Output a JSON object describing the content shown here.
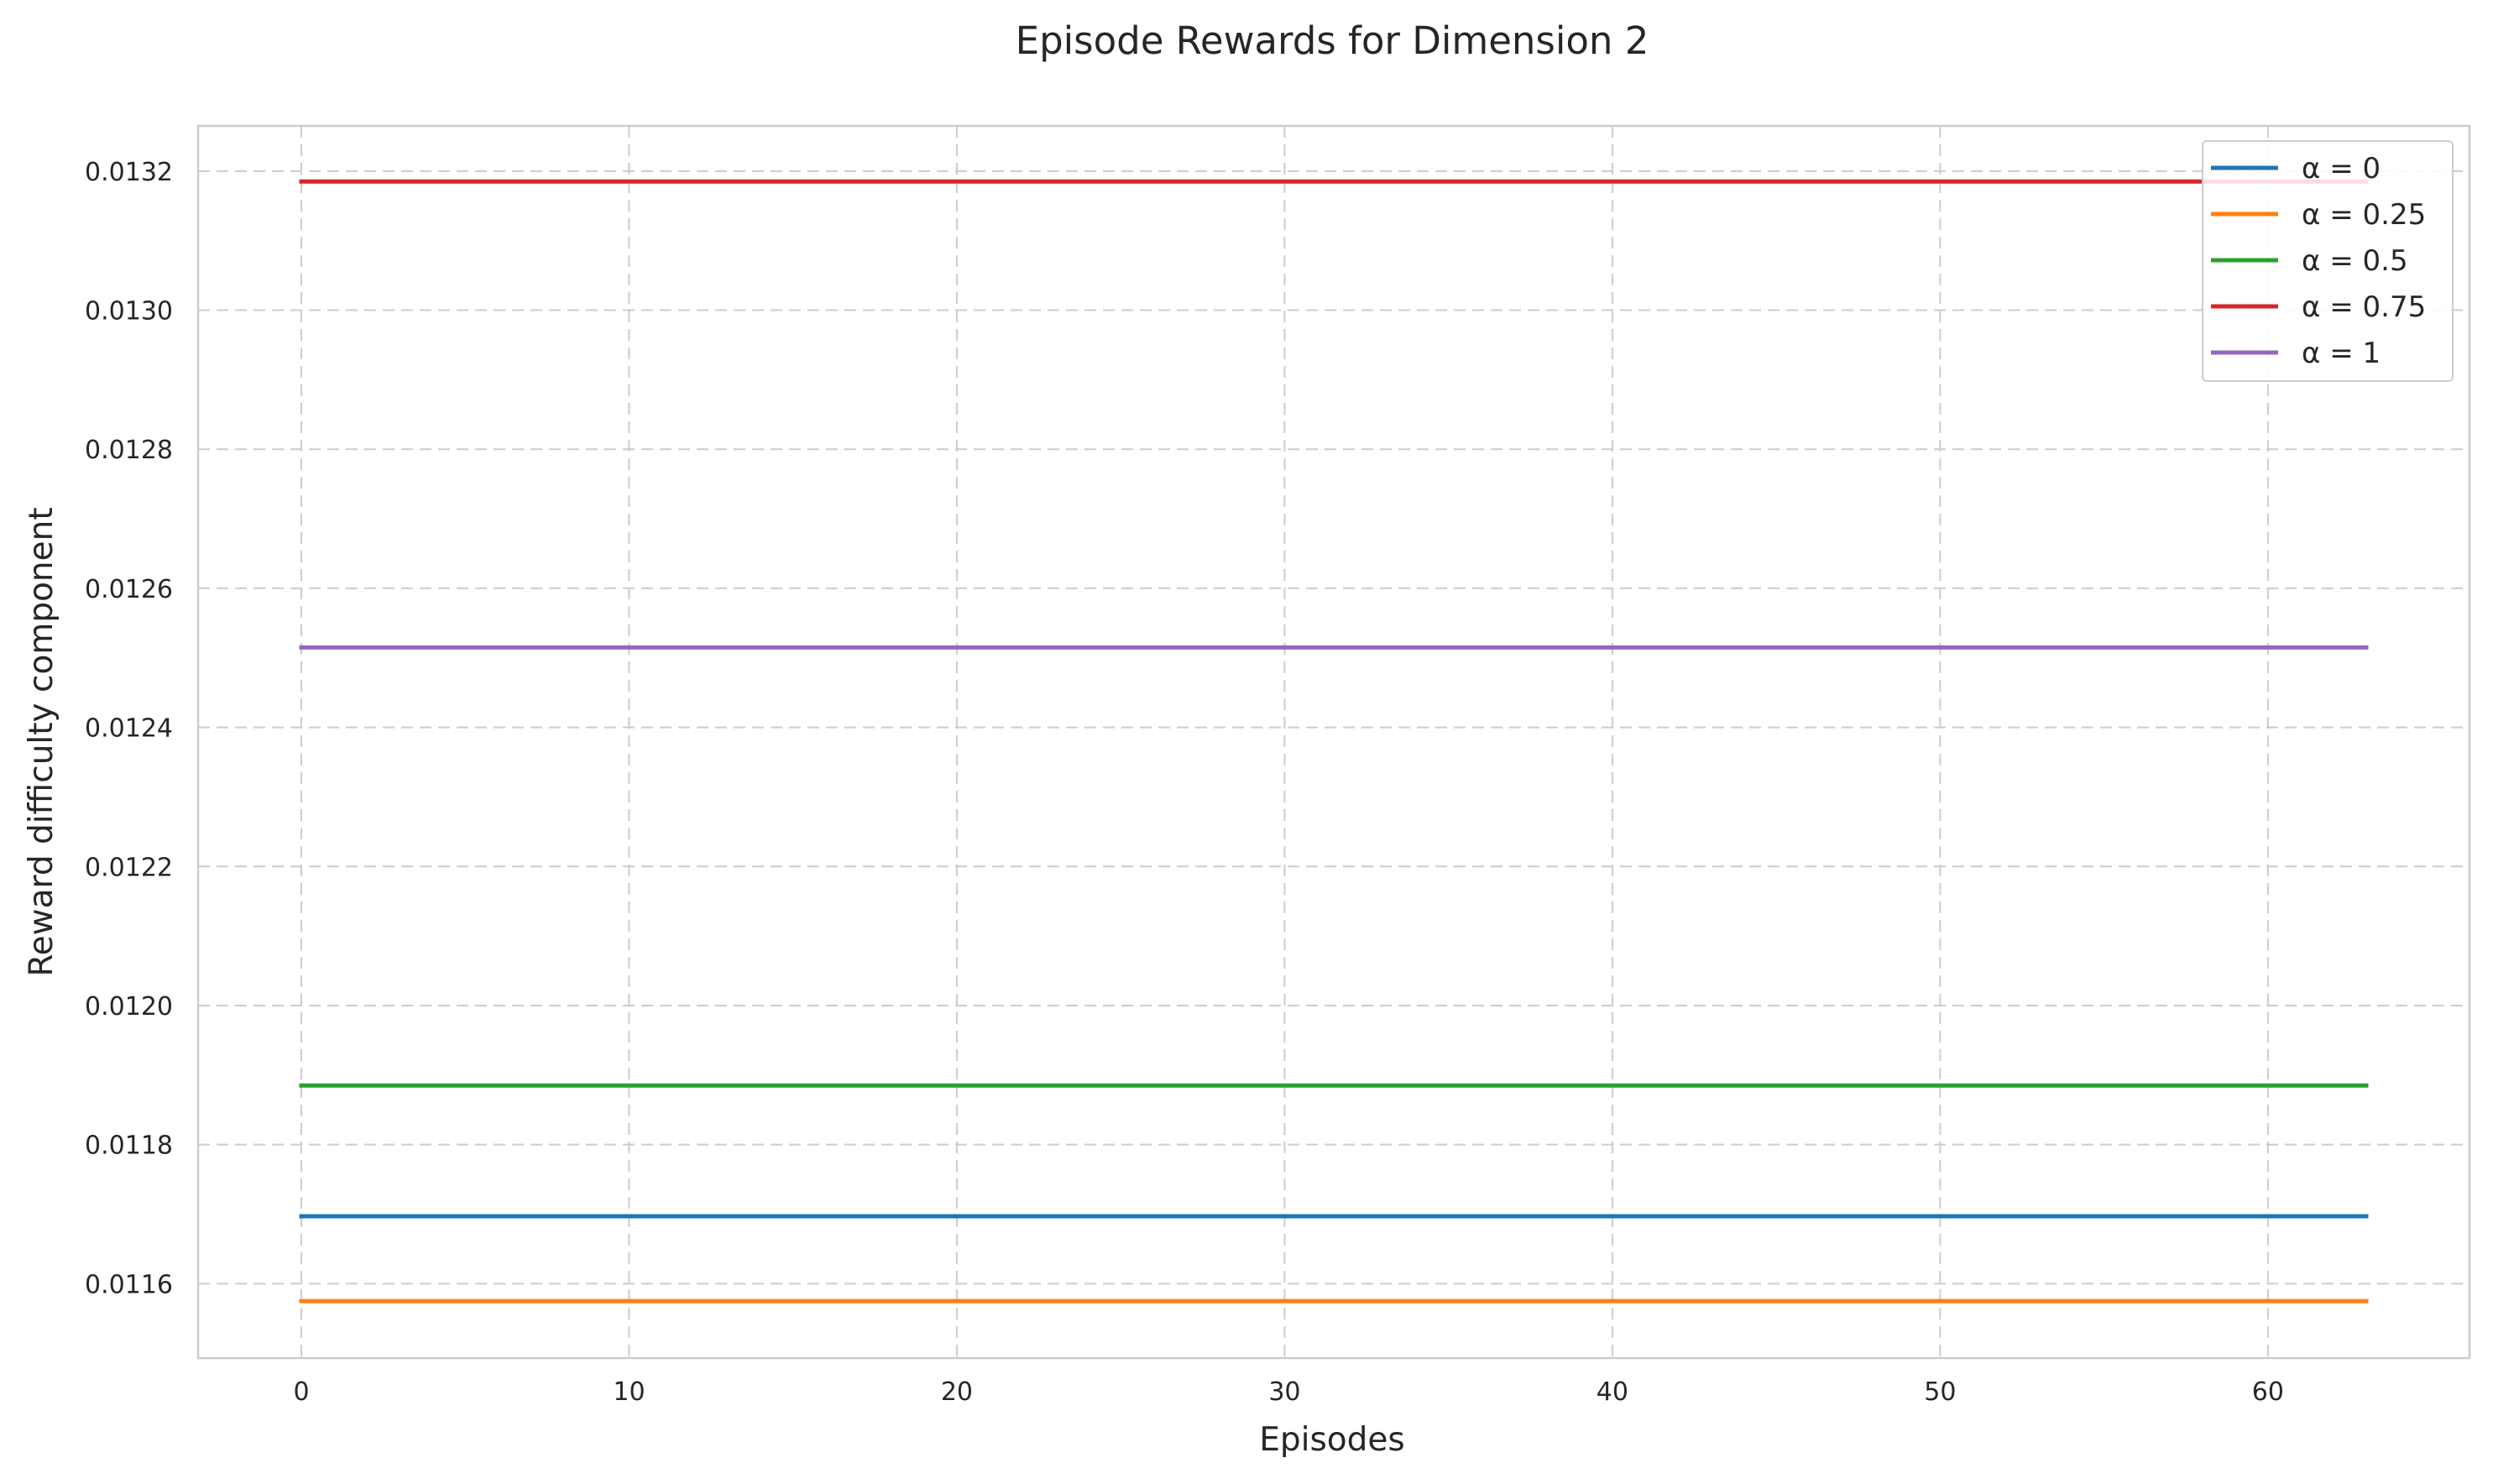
{
  "chart_data": {
    "type": "line",
    "title": "Episode Rewards for Dimension 2",
    "xlabel": "Episodes",
    "ylabel": "Reward difficulty component",
    "xlim": [
      -3.15,
      66.15
    ],
    "ylim": [
      0.011493,
      0.013265
    ],
    "xticks": [
      0,
      10,
      20,
      30,
      40,
      50,
      60
    ],
    "yticks": [
      0.0116,
      0.0118,
      0.012,
      0.0122,
      0.0124,
      0.0126,
      0.0128,
      0.013,
      0.0132
    ],
    "ytick_labels": [
      "0.0116",
      "0.0118",
      "0.0120",
      "0.0122",
      "0.0124",
      "0.0126",
      "0.0128",
      "0.0130",
      "0.0132"
    ],
    "xtick_labels": [
      "0",
      "10",
      "20",
      "30",
      "40",
      "50",
      "60"
    ],
    "grid": true,
    "legend_position": "top-right",
    "x": [
      0,
      63
    ],
    "series": [
      {
        "name": "α = 0",
        "color": "#1f77b4",
        "values": [
          0.011697,
          0.011697
        ]
      },
      {
        "name": "α = 0.25",
        "color": "#ff7f0e",
        "values": [
          0.011575,
          0.011575
        ]
      },
      {
        "name": "α = 0.5",
        "color": "#2ca02c",
        "values": [
          0.011885,
          0.011885
        ]
      },
      {
        "name": "α = 0.75",
        "color": "#d62728",
        "values": [
          0.013185,
          0.013185
        ]
      },
      {
        "name": "α = 1",
        "color": "#9467bd",
        "values": [
          0.012515,
          0.012515
        ]
      }
    ]
  }
}
